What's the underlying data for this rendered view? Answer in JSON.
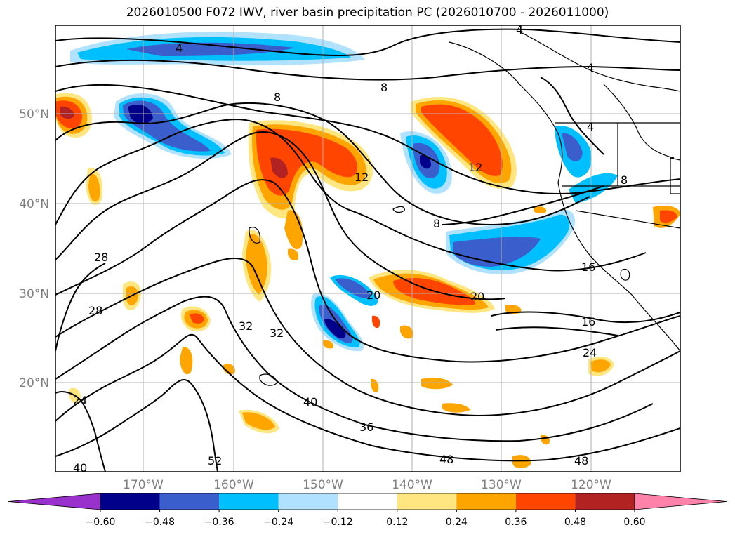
{
  "title": "2026010500 F072 IWV, river basin precipitation PC (2026010700 - 2026011000)",
  "map": {
    "lat_labels": [
      "50°N",
      "40°N",
      "30°N",
      "20°N"
    ],
    "lon_labels": [
      "170°W",
      "160°W",
      "150°W",
      "140°W",
      "130°W",
      "120°W"
    ],
    "iwv_contour_labels": [
      "4",
      "4",
      "4",
      "4",
      "8",
      "8",
      "8",
      "8",
      "12",
      "12",
      "16",
      "16",
      "20",
      "20",
      "24",
      "24",
      "28",
      "28",
      "32",
      "32",
      "36",
      "40",
      "40",
      "48",
      "48",
      "52"
    ]
  },
  "colorbar": {
    "tick_labels": [
      "−0.60",
      "−0.48",
      "−0.36",
      "−0.24",
      "−0.12",
      "0.12",
      "0.24",
      "0.36",
      "0.48",
      "0.60"
    ],
    "colors": [
      "#9932cc",
      "#00008b",
      "#3a5fcd",
      "#00bfff",
      "#b0e2ff",
      "#ffffff",
      "#ffe680",
      "#ffa500",
      "#ff4500",
      "#b22222",
      "#ff82ab"
    ]
  }
}
